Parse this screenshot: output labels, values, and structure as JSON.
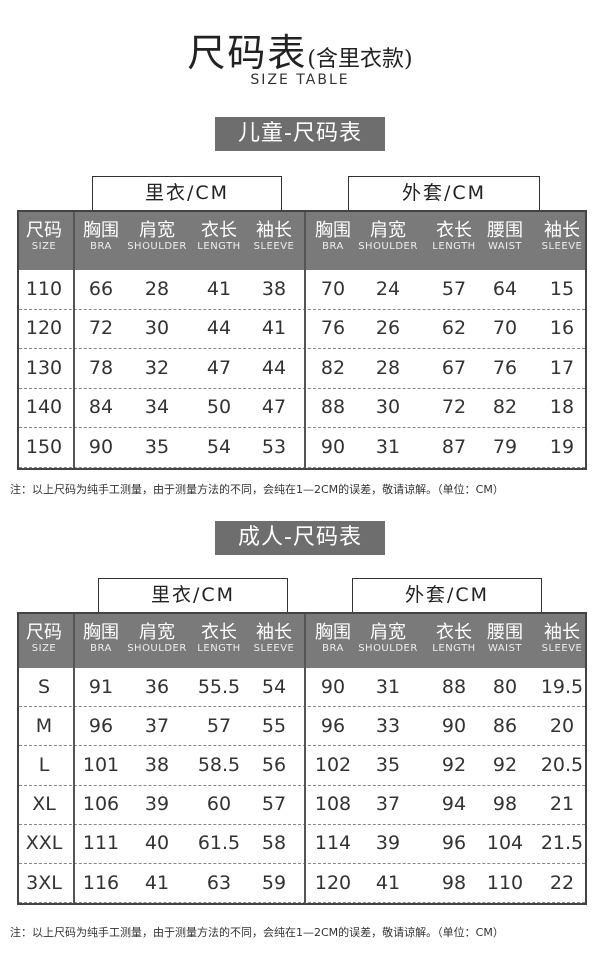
{
  "title": {
    "main": "尺码表",
    "paren": "(含里衣款)",
    "en": "SIZE TABLE"
  },
  "header_cols": [
    {
      "cn": "尺码",
      "en": "SIZE"
    },
    {
      "cn": "胸围",
      "en": "BRA"
    },
    {
      "cn": "肩宽",
      "en": "SHOULDER"
    },
    {
      "cn": "衣长",
      "en": "LENGTH"
    },
    {
      "cn": "袖长",
      "en": "SLEEVE"
    },
    {
      "cn": "胸围",
      "en": "BRA"
    },
    {
      "cn": "肩宽",
      "en": "SHOULDER"
    },
    {
      "cn": "衣长",
      "en": "LENGTH"
    },
    {
      "cn": "腰围",
      "en": "WAIST"
    },
    {
      "cn": "袖长",
      "en": "SLEEVE"
    }
  ],
  "groups": {
    "inner": "里衣/CM",
    "outer": "外套/CM"
  },
  "kids": {
    "section": "儿童-尺码表",
    "rows": [
      [
        "110",
        "66",
        "28",
        "41",
        "38",
        "70",
        "24",
        "57",
        "64",
        "15"
      ],
      [
        "120",
        "72",
        "30",
        "44",
        "41",
        "76",
        "26",
        "62",
        "70",
        "16"
      ],
      [
        "130",
        "78",
        "32",
        "47",
        "44",
        "82",
        "28",
        "67",
        "76",
        "17"
      ],
      [
        "140",
        "84",
        "34",
        "50",
        "47",
        "88",
        "30",
        "72",
        "82",
        "18"
      ],
      [
        "150",
        "90",
        "35",
        "54",
        "53",
        "90",
        "31",
        "87",
        "79",
        "19"
      ]
    ],
    "note": "注：以上尺码为纯手工测量，由于测量方法的不同，会纯在1—2CM的误差，敬请谅解。（单位：CM）"
  },
  "adults": {
    "section": "成人-尺码表",
    "rows": [
      [
        "S",
        "91",
        "36",
        "55.5",
        "54",
        "90",
        "31",
        "88",
        "80",
        "19.5"
      ],
      [
        "M",
        "96",
        "37",
        "57",
        "55",
        "96",
        "33",
        "90",
        "86",
        "20"
      ],
      [
        "L",
        "101",
        "38",
        "58.5",
        "56",
        "102",
        "35",
        "92",
        "92",
        "20.5"
      ],
      [
        "XL",
        "106",
        "39",
        "60",
        "57",
        "108",
        "37",
        "94",
        "98",
        "21"
      ],
      [
        "XXL",
        "111",
        "40",
        "61.5",
        "58",
        "114",
        "39",
        "96",
        "104",
        "21.5"
      ],
      [
        "3XL",
        "116",
        "41",
        "63",
        "59",
        "120",
        "41",
        "98",
        "110",
        "22"
      ]
    ],
    "note": "注：以上尺码为纯手工测量，由于测量方法的不同，会纯在1—2CM的误差，敬请谅解。（单位：CM）"
  },
  "colors": {
    "header_bg": "#7a7a7a",
    "section_bg": "#6e6e6e"
  }
}
